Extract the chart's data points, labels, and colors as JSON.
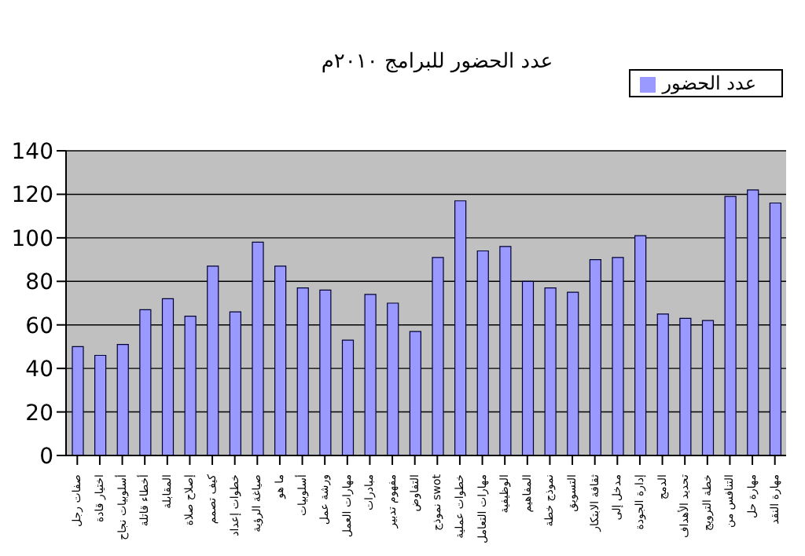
{
  "chart_data": {
    "type": "bar",
    "title": "عدد الحضور للبرامج ٢٠١٠م",
    "categories": [
      "صفات رجل",
      "اختيار قادة",
      "أسلوبيات نجاح",
      "أخطاء قاتلة",
      "المقابلة",
      "إصلاح صلاة",
      "كيف تصمم",
      "خطوات إعداد",
      "صياغة الرؤية",
      "ما هو",
      "أسلوبيات",
      "ورشة عمل",
      "مهارات العمل",
      "مبادرات",
      "مفهوم تدبير",
      "التفاوض",
      "نموذج swot",
      "خطوات عملية",
      "مهارات التعامل",
      "الوظيفية",
      "المفاهيم",
      "نموذج خطة",
      "التسويق",
      "ثقافة الابتكار",
      "مدخل إلى",
      "إدارة الجودة",
      "الدمج",
      "تحديد الأهداف",
      "خطة الترويج",
      "التنافس من",
      "مهارة حل",
      "مهارة النقد"
    ],
    "series": [
      {
        "name": "عدد الحضور",
        "color": "#9999ff",
        "values": [
          50,
          46,
          51,
          67,
          72,
          64,
          87,
          66,
          98,
          87,
          77,
          76,
          53,
          74,
          70,
          57,
          91,
          117,
          94,
          96,
          80,
          77,
          75,
          90,
          91,
          101,
          65,
          63,
          62,
          119,
          122,
          116
        ]
      }
    ],
    "ylim": [
      0,
      140
    ],
    "yticks": [
      0,
      20,
      40,
      60,
      80,
      100,
      120,
      140
    ],
    "grid": "y",
    "legend": "top right"
  }
}
